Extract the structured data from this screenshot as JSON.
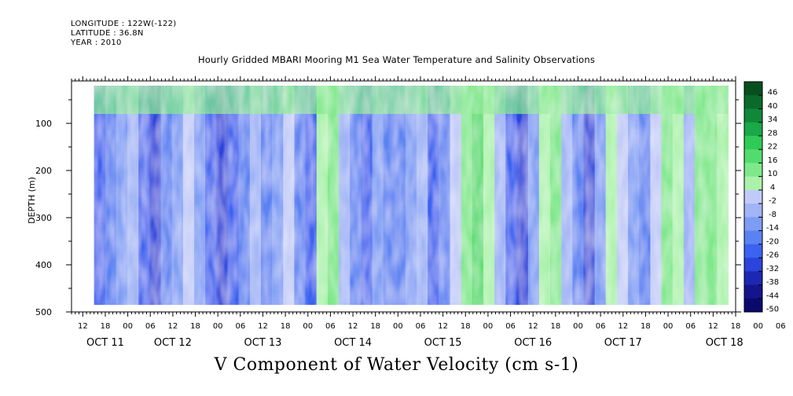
{
  "header": {
    "longitude": "LONGITUDE : 122W(-122)",
    "latitude": "LATITUDE : 36.8N",
    "year": "YEAR : 2010"
  },
  "chart_data": {
    "type": "heatmap",
    "title": "Hourly Gridded MBARI Mooring M1 Sea Water Temperature and Salinity Observations",
    "xlabel": "V Component of Water Velocity (cm s-1)",
    "ylabel": "DEPTH (m)",
    "x_start": "2010-10-11 09:00",
    "x_end": "2010-10-18 18:00",
    "data_start": "2010-10-11 15:00",
    "data_end": "2010-10-18 16:00",
    "hour_ticks": [
      "12",
      "18",
      "00",
      "06",
      "12",
      "18",
      "00",
      "06",
      "12",
      "18",
      "00",
      "06",
      "12",
      "18",
      "00",
      "06",
      "12",
      "18",
      "00",
      "06",
      "12",
      "18",
      "00",
      "06",
      "12",
      "18",
      "00",
      "06",
      "12",
      "18",
      "00",
      "06"
    ],
    "day_labels": [
      "OCT 11",
      "OCT 12",
      "OCT 13",
      "OCT 14",
      "OCT 15",
      "OCT 16",
      "OCT 17",
      "OCT 18"
    ],
    "ylim": [
      500,
      10
    ],
    "data_depth_range": [
      20,
      485
    ],
    "y_ticks": [
      100,
      200,
      300,
      400,
      500
    ],
    "colorbar": {
      "levels": [
        -50,
        -44,
        -38,
        -32,
        -26,
        -20,
        -14,
        -8,
        -2,
        4,
        10,
        16,
        22,
        28,
        34,
        40,
        46
      ],
      "colors": [
        "#0a0a6e",
        "#14148c",
        "#1c28b4",
        "#2a44dc",
        "#3b62f0",
        "#5a82f2",
        "#7d9cf4",
        "#a0b4f6",
        "#c2cbf8",
        "#aaf2aa",
        "#7ee88a",
        "#52dc6e",
        "#2ecb56",
        "#1aa848",
        "#10883a",
        "#0a6a2c",
        "#06501e"
      ],
      "label_values": [
        "46",
        "40",
        "34",
        "28",
        "22",
        "16",
        "10",
        "4",
        "-2",
        "-8",
        "-14",
        "-20",
        "-26",
        "-32",
        "-38",
        "-44",
        "-50"
      ]
    },
    "v_velocity_columns_cm_s": [
      -22,
      -15,
      -8,
      -3,
      -20,
      -26,
      -18,
      -10,
      4,
      -12,
      -24,
      -28,
      -20,
      -14,
      -6,
      -18,
      -10,
      2,
      -14,
      -20,
      8,
      12,
      -6,
      -16,
      -22,
      -8,
      -14,
      -18,
      -10,
      -4,
      -20,
      -16,
      2,
      14,
      18,
      10,
      -4,
      -24,
      -28,
      -12,
      6,
      12,
      -2,
      -14,
      -26,
      -8,
      10,
      4,
      -10,
      -18,
      2,
      12,
      6,
      -6,
      14,
      16,
      8
    ],
    "v_velocity_near_surface_cm_s": 14
  }
}
